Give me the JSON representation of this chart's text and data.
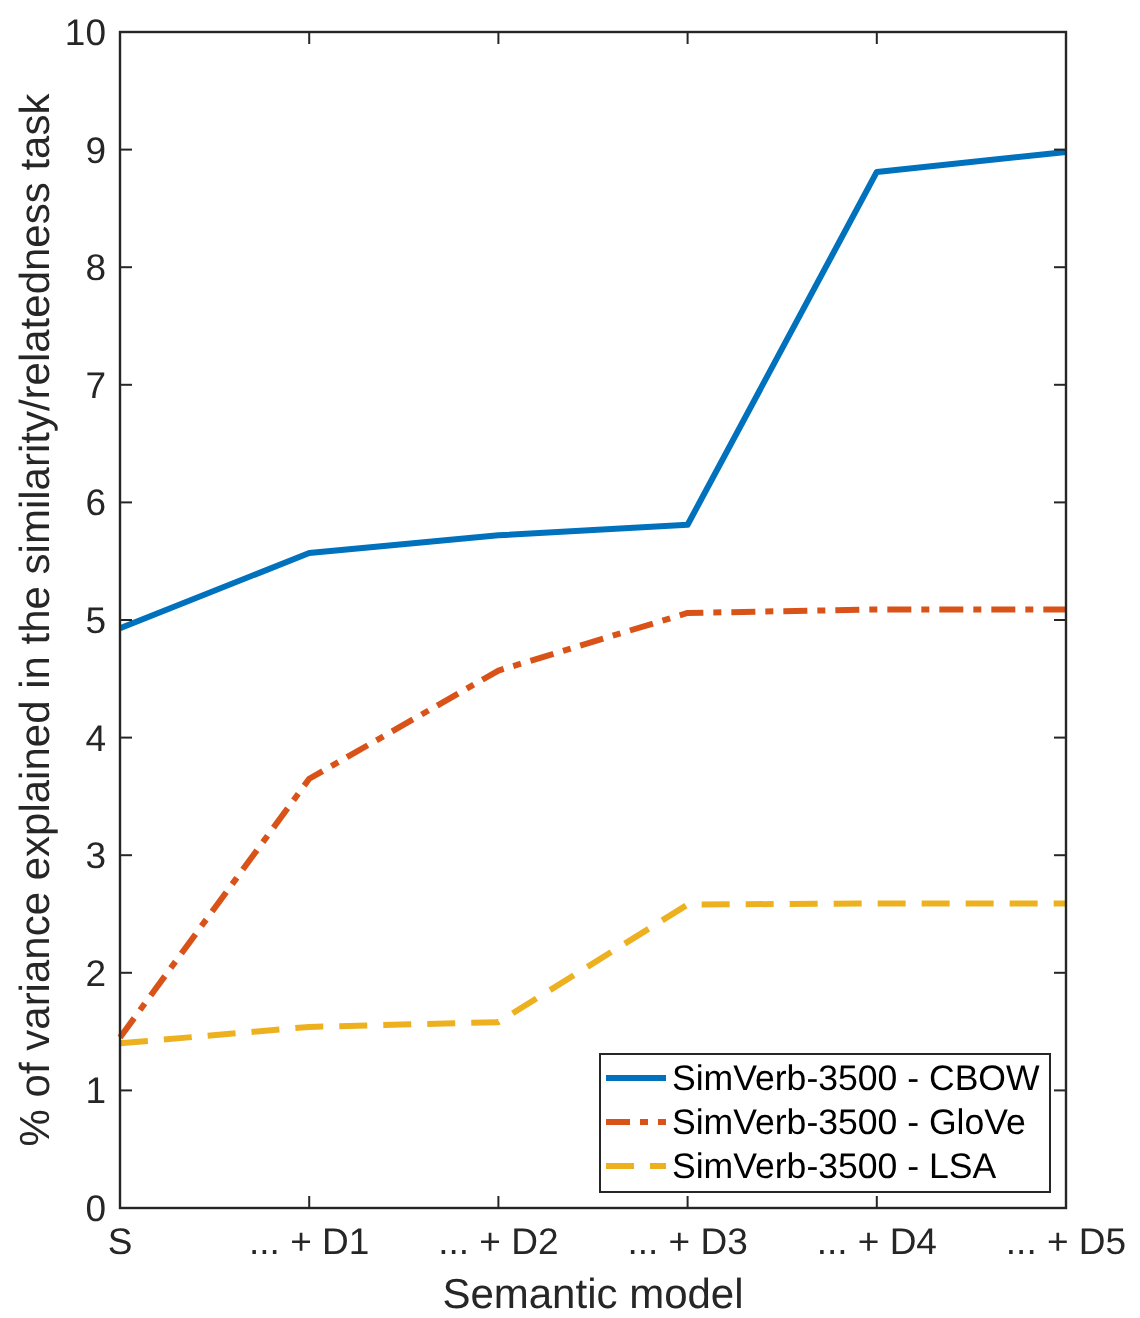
{
  "chart_data": {
    "type": "line",
    "xlabel": "Semantic model",
    "ylabel": "% of variance explained in the similarity/relatedness task",
    "categories": [
      "S",
      "... + D1",
      "... + D2",
      "... + D3",
      "... + D4",
      "... + D5"
    ],
    "series": [
      {
        "name": "SimVerb-3500 - CBOW",
        "color": "#0072bd",
        "line_style": "solid",
        "values": [
          4.93,
          5.57,
          5.72,
          5.81,
          8.81,
          8.98
        ]
      },
      {
        "name": "SimVerb-3500 - GloVe",
        "color": "#d95319",
        "line_style": "dashdot",
        "values": [
          1.45,
          3.65,
          4.57,
          5.06,
          5.09,
          5.09
        ]
      },
      {
        "name": "SimVerb-3500 - LSA",
        "color": "#edb120",
        "line_style": "dashed",
        "values": [
          1.4,
          1.54,
          1.58,
          2.58,
          2.59,
          2.59
        ]
      }
    ],
    "ylim": [
      0,
      10
    ],
    "yticks": [
      0,
      1,
      2,
      3,
      4,
      5,
      6,
      7,
      8,
      9,
      10
    ],
    "grid": false,
    "legend": "bottom right",
    "marker": "none"
  }
}
